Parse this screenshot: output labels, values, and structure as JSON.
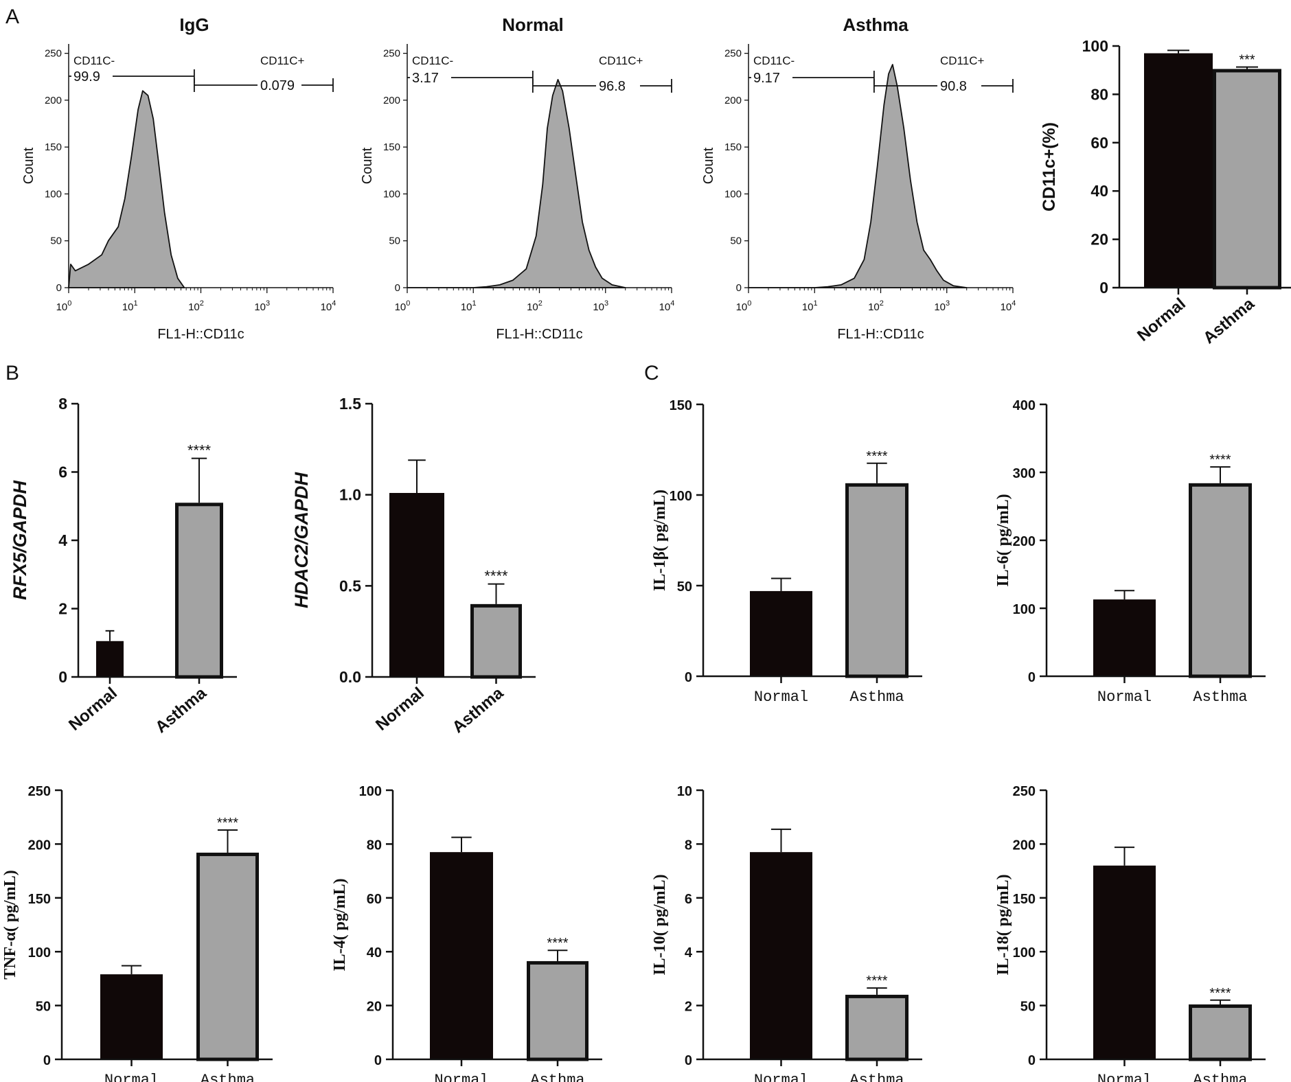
{
  "panels": {
    "A": "A",
    "B": "B",
    "C": "C"
  },
  "colors": {
    "normal_bar": "#100808",
    "asthma_bar": "#a3a3a3",
    "hist_fill": "#a8a8a8",
    "ink": "#111111"
  },
  "chart_data": [
    {
      "id": "flow-igg",
      "type": "area",
      "title": "IgG",
      "xlabel": "FL1-H::CD11c",
      "ylabel": "Count",
      "xscale": "log10",
      "xlim": [
        0,
        4
      ],
      "ylim": [
        0,
        260
      ],
      "yticks": [
        "0",
        "50",
        "100",
        "150",
        "200",
        "250"
      ],
      "xticks": [
        {
          "base": "10",
          "exp": "0"
        },
        {
          "base": "10",
          "exp": "1"
        },
        {
          "base": "10",
          "exp": "2"
        },
        {
          "base": "10",
          "exp": "3"
        },
        {
          "base": "10",
          "exp": "4"
        }
      ],
      "gate_split": 1.9,
      "gates": [
        {
          "label": "CD11C-",
          "value": "99.9"
        },
        {
          "label": "CD11C+",
          "value": "0.079"
        }
      ],
      "curve": [
        [
          0,
          0
        ],
        [
          0.03,
          25
        ],
        [
          0.1,
          18
        ],
        [
          0.3,
          25
        ],
        [
          0.5,
          35
        ],
        [
          0.6,
          50
        ],
        [
          0.75,
          65
        ],
        [
          0.85,
          95
        ],
        [
          0.95,
          140
        ],
        [
          1.05,
          190
        ],
        [
          1.12,
          210
        ],
        [
          1.2,
          205
        ],
        [
          1.28,
          180
        ],
        [
          1.35,
          140
        ],
        [
          1.45,
          80
        ],
        [
          1.55,
          35
        ],
        [
          1.65,
          10
        ],
        [
          1.75,
          0
        ]
      ]
    },
    {
      "id": "flow-normal",
      "type": "area",
      "title": "Normal",
      "xlabel": "FL1-H::CD11c",
      "ylabel": "Count",
      "xscale": "log10",
      "xlim": [
        0,
        4
      ],
      "ylim": [
        0,
        260
      ],
      "yticks": [
        "0",
        "50",
        "100",
        "150",
        "200",
        "250"
      ],
      "xticks": [
        {
          "base": "10",
          "exp": "0"
        },
        {
          "base": "10",
          "exp": "1"
        },
        {
          "base": "10",
          "exp": "2"
        },
        {
          "base": "10",
          "exp": "3"
        },
        {
          "base": "10",
          "exp": "4"
        }
      ],
      "gate_split": 1.9,
      "gates": [
        {
          "label": "CD11C-",
          "value": "3.17"
        },
        {
          "label": "CD11C+",
          "value": "96.8"
        }
      ],
      "curve": [
        [
          0,
          0
        ],
        [
          1.0,
          0
        ],
        [
          1.2,
          1
        ],
        [
          1.4,
          3
        ],
        [
          1.6,
          8
        ],
        [
          1.8,
          20
        ],
        [
          1.95,
          55
        ],
        [
          2.05,
          110
        ],
        [
          2.12,
          170
        ],
        [
          2.2,
          205
        ],
        [
          2.28,
          222
        ],
        [
          2.35,
          210
        ],
        [
          2.45,
          170
        ],
        [
          2.55,
          120
        ],
        [
          2.65,
          70
        ],
        [
          2.75,
          40
        ],
        [
          2.85,
          22
        ],
        [
          2.95,
          10
        ],
        [
          3.1,
          3
        ],
        [
          3.3,
          0
        ]
      ]
    },
    {
      "id": "flow-asthma",
      "type": "area",
      "title": "Asthma",
      "xlabel": "FL1-H::CD11c",
      "ylabel": "Count",
      "xscale": "log10",
      "xlim": [
        0,
        4
      ],
      "ylim": [
        0,
        260
      ],
      "yticks": [
        "0",
        "50",
        "100",
        "150",
        "200",
        "250"
      ],
      "xticks": [
        {
          "base": "10",
          "exp": "0"
        },
        {
          "base": "10",
          "exp": "1"
        },
        {
          "base": "10",
          "exp": "2"
        },
        {
          "base": "10",
          "exp": "3"
        },
        {
          "base": "10",
          "exp": "4"
        }
      ],
      "gate_split": 1.9,
      "gates": [
        {
          "label": "CD11C-",
          "value": "9.17"
        },
        {
          "label": "CD11C+",
          "value": "90.8"
        }
      ],
      "curve": [
        [
          0,
          0
        ],
        [
          1.0,
          0
        ],
        [
          1.2,
          1
        ],
        [
          1.4,
          3
        ],
        [
          1.6,
          10
        ],
        [
          1.75,
          30
        ],
        [
          1.85,
          70
        ],
        [
          1.95,
          130
        ],
        [
          2.05,
          195
        ],
        [
          2.12,
          228
        ],
        [
          2.18,
          238
        ],
        [
          2.25,
          215
        ],
        [
          2.35,
          170
        ],
        [
          2.45,
          115
        ],
        [
          2.55,
          70
        ],
        [
          2.65,
          40
        ],
        [
          2.75,
          30
        ],
        [
          2.85,
          18
        ],
        [
          2.95,
          8
        ],
        [
          3.1,
          2
        ],
        [
          3.3,
          0
        ]
      ]
    },
    {
      "id": "bar-cd11c",
      "type": "bar",
      "ylabel": "CD11c+(%)",
      "ylim": [
        0,
        100
      ],
      "yticks": [
        "0",
        "20",
        "40",
        "60",
        "80",
        "100"
      ],
      "categories": [
        "Normal",
        "Asthma"
      ],
      "values": [
        97,
        90.5
      ],
      "errors": [
        1.2,
        0.8
      ],
      "significance": [
        "",
        "***"
      ]
    },
    {
      "id": "bar-rfx5",
      "type": "bar",
      "ylabel": "RFX5/GAPDH",
      "ylim": [
        0,
        8
      ],
      "yticks": [
        "0",
        "2",
        "4",
        "6",
        "8"
      ],
      "categories": [
        "Normal",
        "Asthma"
      ],
      "values": [
        1.05,
        5.1
      ],
      "errors": [
        0.3,
        1.3
      ],
      "significance": [
        "",
        "****"
      ]
    },
    {
      "id": "bar-hdac2",
      "type": "bar",
      "ylabel": "HDAC2/GAPDH",
      "ylim": [
        0,
        1.5
      ],
      "yticks": [
        "0.0",
        "0.5",
        "1.0",
        "1.5"
      ],
      "categories": [
        "Normal",
        "Asthma"
      ],
      "values": [
        1.01,
        0.4
      ],
      "errors": [
        0.18,
        0.11
      ],
      "significance": [
        "",
        "****"
      ]
    },
    {
      "id": "bar-il1b",
      "type": "bar",
      "ylabel": "IL-1β( pg/mL)",
      "ylim": [
        0,
        150
      ],
      "yticks": [
        "0",
        "50",
        "100",
        "150"
      ],
      "categories": [
        "Normal",
        "Asthma"
      ],
      "values": [
        47,
        106.5
      ],
      "errors": [
        7,
        11
      ],
      "significance": [
        "",
        "****"
      ]
    },
    {
      "id": "bar-il6",
      "type": "bar",
      "ylabel": "IL-6( pg/mL)",
      "ylim": [
        0,
        400
      ],
      "yticks": [
        "0",
        "100",
        "200",
        "300",
        "400"
      ],
      "categories": [
        "Normal",
        "Asthma"
      ],
      "values": [
        113,
        284
      ],
      "errors": [
        13,
        24
      ],
      "significance": [
        "",
        "****"
      ]
    },
    {
      "id": "bar-tnfa",
      "type": "bar",
      "ylabel": "TNF-α( pg/mL)",
      "ylim": [
        0,
        250
      ],
      "yticks": [
        "0",
        "50",
        "100",
        "150",
        "200",
        "250"
      ],
      "categories": [
        "Normal",
        "Asthma"
      ],
      "values": [
        79,
        192
      ],
      "errors": [
        8,
        21
      ],
      "significance": [
        "",
        "****"
      ]
    },
    {
      "id": "bar-il4",
      "type": "bar",
      "ylabel": "IL-4( pg/mL)",
      "ylim": [
        0,
        100
      ],
      "yticks": [
        "0",
        "20",
        "40",
        "60",
        "80",
        "100"
      ],
      "categories": [
        "Normal",
        "Asthma"
      ],
      "values": [
        77,
        36.5
      ],
      "errors": [
        5.5,
        4
      ],
      "significance": [
        "",
        "****"
      ]
    },
    {
      "id": "bar-il10",
      "type": "bar",
      "ylabel": "IL-10( pg/mL)",
      "ylim": [
        0,
        10
      ],
      "yticks": [
        "0",
        "2",
        "4",
        "6",
        "8",
        "10"
      ],
      "categories": [
        "Normal",
        "Asthma"
      ],
      "values": [
        7.7,
        2.4
      ],
      "errors": [
        0.85,
        0.25
      ],
      "significance": [
        "",
        "****"
      ]
    },
    {
      "id": "bar-il18",
      "type": "bar",
      "ylabel": "IL-18( pg/mL)",
      "ylim": [
        0,
        250
      ],
      "yticks": [
        "0",
        "50",
        "100",
        "150",
        "200",
        "250"
      ],
      "categories": [
        "Normal",
        "Asthma"
      ],
      "values": [
        180,
        51
      ],
      "errors": [
        17,
        4
      ],
      "significance": [
        "",
        "****"
      ]
    }
  ]
}
